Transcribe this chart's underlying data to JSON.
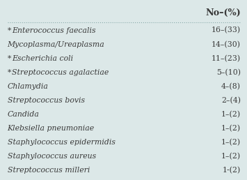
{
  "title": "No–(%)",
  "rows": [
    {
      "label": "*Enterococcus faecalis",
      "value": "16–(33)",
      "starred": true
    },
    {
      "label": "Mycoplasma/Ureaplasma",
      "value": "14–(30)",
      "starred": false
    },
    {
      "label": "*Escherichia coli",
      "value": "11–(23)",
      "starred": true
    },
    {
      "label": "*Streptococcus agalactiae",
      "value": "5–(10)",
      "starred": true
    },
    {
      "label": "Chlamydia",
      "value": "4–(8)",
      "starred": false
    },
    {
      "label": "Streptococcus bovis",
      "value": "2–(4)",
      "starred": false
    },
    {
      "label": "Candida",
      "value": "1–(2)",
      "starred": false
    },
    {
      "label": "Klebsiella pneumoniae",
      "value": "1–(2)",
      "starred": false
    },
    {
      "label": "Staphylococcus epidermidis",
      "value": "1–(2)",
      "starred": false
    },
    {
      "label": "Staphylococcus aureus",
      "value": "1–(2)",
      "starred": false
    },
    {
      "label": "Streptococcus milleri",
      "value": "1-(2)",
      "starred": false
    }
  ],
  "bg_color": "#dce8e8",
  "header_line_color": "#8aabab",
  "text_color": "#3a3a3a",
  "font_size": 7.8,
  "header_font_size": 9.2,
  "fig_width": 3.55,
  "fig_height": 2.58,
  "dpi": 100
}
